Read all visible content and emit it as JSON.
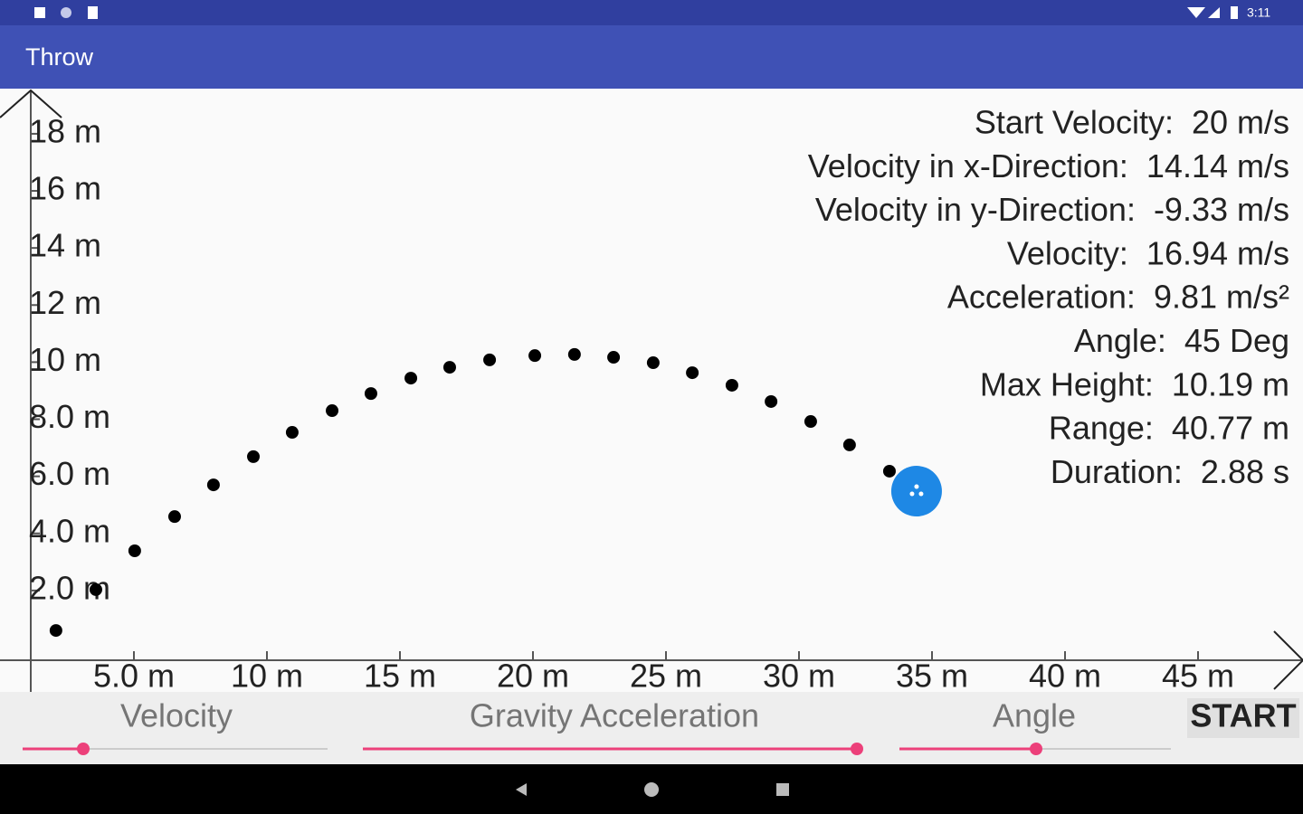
{
  "status_bar": {
    "time": "3:11"
  },
  "app_bar": {
    "title": "Throw"
  },
  "plot": {
    "xticks": [
      {
        "value": 5,
        "label": "5.0 m"
      },
      {
        "value": 10,
        "label": "10 m"
      },
      {
        "value": 15,
        "label": "15 m"
      },
      {
        "value": 20,
        "label": "20 m"
      },
      {
        "value": 25,
        "label": "25 m"
      },
      {
        "value": 30,
        "label": "30 m"
      },
      {
        "value": 35,
        "label": "35 m"
      },
      {
        "value": 40,
        "label": "40 m"
      },
      {
        "value": 45,
        "label": "45 m"
      }
    ],
    "yticks": [
      {
        "value": 2,
        "label": "2.0 m"
      },
      {
        "value": 4,
        "label": "4.0 m"
      },
      {
        "value": 6,
        "label": "6.0 m"
      },
      {
        "value": 8,
        "label": "8.0 m"
      },
      {
        "value": 10,
        "label": "10 m"
      },
      {
        "value": 12,
        "label": "12 m"
      },
      {
        "value": 14,
        "label": "14 m"
      },
      {
        "value": 16,
        "label": "16 m"
      },
      {
        "value": 18,
        "label": "18 m"
      }
    ],
    "trajectory": {
      "x": [
        2.07,
        3.57,
        5.03,
        6.53,
        7.99,
        9.49,
        10.95,
        12.45,
        13.91,
        15.41,
        16.87,
        18.37,
        20.07,
        21.56,
        23.03,
        24.52,
        25.99,
        27.48,
        28.95,
        30.44,
        31.9,
        33.4
      ],
      "y": [
        0.6,
        2.03,
        3.39,
        4.59,
        5.7,
        6.69,
        7.54,
        8.3,
        8.9,
        9.44,
        9.82,
        10.08,
        10.23,
        10.27,
        10.17,
        9.98,
        9.63,
        9.19,
        8.62,
        7.92,
        7.1,
        6.18
      ]
    },
    "ball": {
      "x": 34.42,
      "y": 5.48
    }
  },
  "info": [
    "Start Velocity:  20 m/s",
    "Velocity in x-Direction:  14.14 m/s",
    "Velocity in y-Direction:  -9.33 m/s",
    "Velocity:  16.94 m/s",
    "Acceleration:  9.81 m/s²",
    "Angle:  45 Deg",
    "Max Height:  10.19 m",
    "Range:  40.77 m",
    "Duration:  2.88 s"
  ],
  "controls": {
    "velocity_label": "Velocity",
    "gravity_label": "Gravity Acceleration",
    "angle_label": "Angle",
    "start_button": "START"
  }
}
